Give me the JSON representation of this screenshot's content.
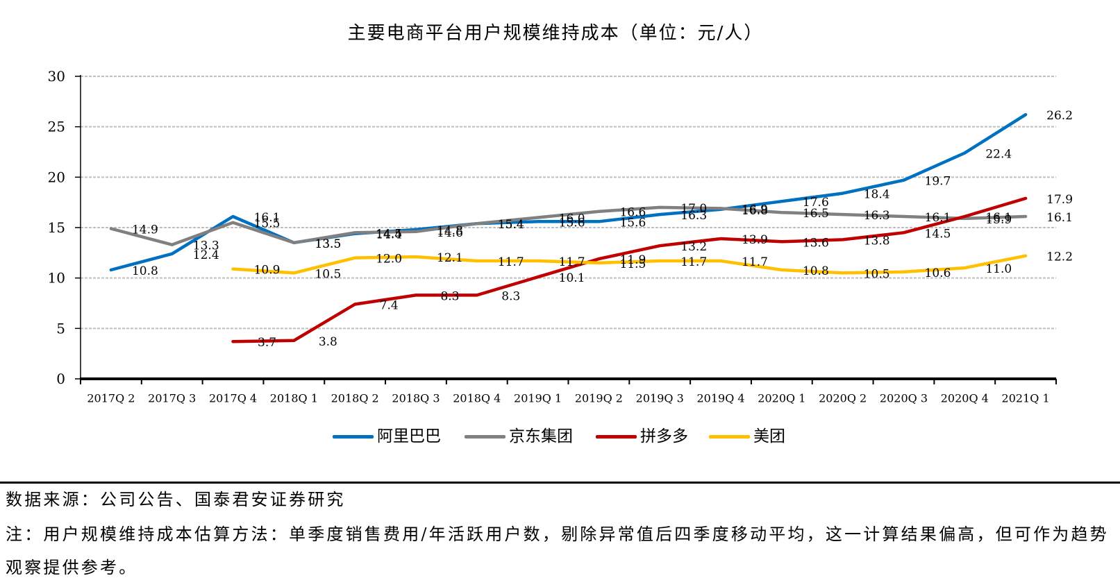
{
  "chart_data": {
    "type": "line",
    "title": "主要电商平台用户规模维持成本（单位：元/人）",
    "xlabel": "",
    "ylabel": "",
    "categories": [
      "2017Q 2",
      "2017Q 3",
      "2017Q 4",
      "2018Q 1",
      "2018Q 2",
      "2018Q 3",
      "2018Q 4",
      "2019Q 1",
      "2019Q 2",
      "2019Q 3",
      "2019Q 4",
      "2020Q 1",
      "2020Q 2",
      "2020Q 3",
      "2020Q 4",
      "2021Q 1"
    ],
    "ylim": [
      0,
      30
    ],
    "yticks": [
      0,
      5,
      10,
      15,
      20,
      25,
      30
    ],
    "ytick_labels": [
      "0",
      "5",
      "10",
      "15",
      "20",
      "25",
      "30"
    ],
    "grid": true,
    "legend": "bottom",
    "data_labels": "right",
    "series": [
      {
        "name": "阿里巴巴",
        "color": "#0070C0",
        "values": [
          10.8,
          12.4,
          16.1,
          13.5,
          14.4,
          14.8,
          15.4,
          15.6,
          15.6,
          16.3,
          16.8,
          17.6,
          18.4,
          19.7,
          22.4,
          26.2
        ],
        "labels": [
          "10.8",
          "12.4",
          "16.1",
          "13.5",
          "14.4",
          "14.8",
          "15.4",
          "15.6",
          "15.6",
          "16.3",
          "16.8",
          "17.6",
          "18.4",
          "19.7",
          "22.4",
          "26.2"
        ]
      },
      {
        "name": "京东集团",
        "color": "#808080",
        "values": [
          14.9,
          13.3,
          15.5,
          13.5,
          14.5,
          14.6,
          15.4,
          16.0,
          16.6,
          17.0,
          16.9,
          16.5,
          16.3,
          16.1,
          15.9,
          16.1
        ],
        "labels": [
          "14.9",
          "13.3",
          "15.5",
          "13.5",
          "14.5",
          "14.6",
          "15.4",
          "16.0",
          "16.6",
          "17.0",
          "16.9",
          "16.5",
          "16.3",
          "16.1",
          "15.9",
          "16.1"
        ]
      },
      {
        "name": "拼多多",
        "color": "#C00000",
        "values": [
          null,
          null,
          3.7,
          3.8,
          7.4,
          8.3,
          8.3,
          10.1,
          11.9,
          13.2,
          13.9,
          13.6,
          13.8,
          14.5,
          16.1,
          17.9
        ],
        "labels": [
          null,
          null,
          "3.7",
          "3.8",
          "7.4",
          "8.3",
          "8.3",
          "10.1",
          "11.9",
          "13.2",
          "13.9",
          "13.6",
          "13.8",
          "14.5",
          "16.1",
          "17.9"
        ]
      },
      {
        "name": "美团",
        "color": "#FFC000",
        "values": [
          null,
          null,
          10.9,
          10.5,
          12.0,
          12.1,
          11.7,
          11.7,
          11.5,
          11.7,
          11.7,
          10.8,
          10.5,
          10.6,
          11.0,
          12.2
        ],
        "labels": [
          null,
          null,
          "10.9",
          "10.5",
          "12.0",
          "12.1",
          "11.7",
          "11.7",
          "11.5",
          "11.7",
          "11.7",
          "10.8",
          "10.5",
          "10.6",
          "11.0",
          "12.2"
        ]
      }
    ]
  },
  "footer": {
    "source": "数据来源：公司公告、国泰君安证券研究",
    "note": "注：用户规模维持成本估算方法：单季度销售费用/年活跃用户数，剔除异常值后四季度移动平均，这一计算结果偏高，但可作为趋势观察提供参考。"
  }
}
